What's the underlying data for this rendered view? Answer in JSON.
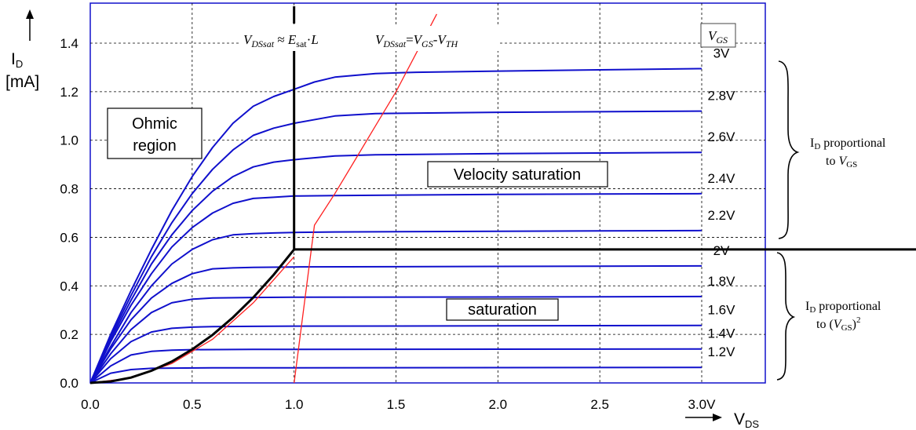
{
  "chart_data": {
    "type": "line",
    "title": "",
    "xlabel": "V",
    "xlabel_sub": "DS",
    "ylabel": "I",
    "ylabel_sub": "D",
    "ylabel_unit": "[mA]",
    "xlim": [
      0,
      3.3
    ],
    "ylim": [
      0,
      1.55
    ],
    "x_ticks": [
      {
        "value": 0.0,
        "label": "0.0"
      },
      {
        "value": 0.5,
        "label": "0.5"
      },
      {
        "value": 1.0,
        "label": "1.0"
      },
      {
        "value": 1.5,
        "label": "1.5"
      },
      {
        "value": 2.0,
        "label": "2.0"
      },
      {
        "value": 2.5,
        "label": "2.5"
      },
      {
        "value": 3.0,
        "label": "3.0V"
      }
    ],
    "y_ticks": [
      {
        "value": 0.0,
        "label": "0.0"
      },
      {
        "value": 0.2,
        "label": "0.2"
      },
      {
        "value": 0.4,
        "label": "0.4"
      },
      {
        "value": 0.6,
        "label": "0.6"
      },
      {
        "value": 0.8,
        "label": "0.8"
      },
      {
        "value": 1.0,
        "label": "1.0"
      },
      {
        "value": 1.2,
        "label": "1.2"
      },
      {
        "value": 1.4,
        "label": "1.4"
      }
    ],
    "grid": true,
    "legend_title": "V",
    "legend_title_sub": "GS",
    "series_color": "#1010cc",
    "series": [
      {
        "name": "3V",
        "x": [
          0,
          0.1,
          0.2,
          0.3,
          0.4,
          0.5,
          0.6,
          0.7,
          0.8,
          0.9,
          1.0,
          1.1,
          1.2,
          1.4,
          1.6,
          2.0,
          2.5,
          3.0
        ],
        "values": [
          0,
          0.2,
          0.38,
          0.55,
          0.71,
          0.85,
          0.97,
          1.07,
          1.14,
          1.18,
          1.21,
          1.24,
          1.26,
          1.275,
          1.28,
          1.285,
          1.29,
          1.295
        ]
      },
      {
        "name": "2.8V",
        "x": [
          0,
          0.1,
          0.2,
          0.3,
          0.4,
          0.5,
          0.6,
          0.7,
          0.8,
          0.9,
          1.0,
          1.2,
          1.4,
          2.0,
          3.0
        ],
        "values": [
          0,
          0.19,
          0.36,
          0.52,
          0.66,
          0.78,
          0.88,
          0.96,
          1.02,
          1.05,
          1.07,
          1.1,
          1.11,
          1.115,
          1.12
        ]
      },
      {
        "name": "2.6V",
        "x": [
          0,
          0.1,
          0.2,
          0.3,
          0.4,
          0.5,
          0.6,
          0.7,
          0.8,
          0.9,
          1.0,
          1.2,
          1.4,
          2.0,
          3.0
        ],
        "values": [
          0,
          0.18,
          0.34,
          0.49,
          0.61,
          0.71,
          0.79,
          0.85,
          0.89,
          0.91,
          0.92,
          0.935,
          0.94,
          0.945,
          0.95
        ]
      },
      {
        "name": "2.4V",
        "x": [
          0,
          0.1,
          0.2,
          0.3,
          0.4,
          0.5,
          0.6,
          0.7,
          0.8,
          0.9,
          1.0,
          1.2,
          2.0,
          3.0
        ],
        "values": [
          0,
          0.17,
          0.32,
          0.45,
          0.56,
          0.64,
          0.7,
          0.74,
          0.76,
          0.765,
          0.77,
          0.772,
          0.777,
          0.78
        ]
      },
      {
        "name": "2.2V",
        "x": [
          0,
          0.1,
          0.2,
          0.3,
          0.4,
          0.5,
          0.6,
          0.7,
          0.8,
          0.9,
          1.0,
          1.2,
          2.0,
          3.0
        ],
        "values": [
          0,
          0.15,
          0.29,
          0.4,
          0.49,
          0.55,
          0.59,
          0.61,
          0.615,
          0.618,
          0.62,
          0.622,
          0.625,
          0.628
        ]
      },
      {
        "name": "2V",
        "x": [
          0,
          0.1,
          0.2,
          0.3,
          0.4,
          0.5,
          0.6,
          0.7,
          0.8,
          1.0,
          1.5,
          2.0,
          3.0
        ],
        "values": [
          0,
          0.14,
          0.26,
          0.35,
          0.41,
          0.45,
          0.47,
          0.474,
          0.476,
          0.478,
          0.479,
          0.48,
          0.482
        ]
      },
      {
        "name": "1.8V",
        "x": [
          0,
          0.1,
          0.2,
          0.3,
          0.4,
          0.5,
          0.6,
          0.8,
          1.0,
          2.0,
          3.0
        ],
        "values": [
          0,
          0.12,
          0.22,
          0.29,
          0.33,
          0.345,
          0.35,
          0.352,
          0.353,
          0.354,
          0.356
        ]
      },
      {
        "name": "1.6V",
        "x": [
          0,
          0.1,
          0.2,
          0.3,
          0.4,
          0.5,
          0.6,
          0.8,
          1.0,
          2.0,
          3.0
        ],
        "values": [
          0,
          0.1,
          0.17,
          0.21,
          0.225,
          0.23,
          0.232,
          0.233,
          0.234,
          0.235,
          0.237
        ]
      },
      {
        "name": "1.4V",
        "x": [
          0,
          0.1,
          0.2,
          0.3,
          0.4,
          0.5,
          0.8,
          1.0,
          2.0,
          3.0
        ],
        "values": [
          0,
          0.07,
          0.115,
          0.13,
          0.135,
          0.137,
          0.138,
          0.138,
          0.139,
          0.14
        ]
      },
      {
        "name": "1.2V",
        "x": [
          0,
          0.1,
          0.2,
          0.3,
          0.4,
          0.6,
          1.0,
          2.0,
          3.0
        ],
        "values": [
          0,
          0.04,
          0.055,
          0.06,
          0.061,
          0.062,
          0.062,
          0.063,
          0.064
        ]
      }
    ],
    "boundary_black": {
      "curve_x": [
        0,
        0.1,
        0.2,
        0.3,
        0.4,
        0.5,
        0.6,
        0.7,
        0.8,
        0.9,
        1.0
      ],
      "curve_y": [
        0,
        0.006,
        0.022,
        0.05,
        0.088,
        0.138,
        0.198,
        0.27,
        0.352,
        0.446,
        0.55
      ],
      "vertical_x": 1.0,
      "horizontal_y": 0.55
    },
    "boundary_red": {
      "x": [
        0,
        0.2,
        0.4,
        0.6,
        0.8,
        1.0,
        1.0,
        1.1,
        1.2,
        1.3,
        1.4,
        1.5,
        1.6,
        1.7
      ],
      "y": [
        0,
        0.02,
        0.08,
        0.18,
        0.33,
        0.52,
        0.0,
        0.65,
        0.78,
        0.92,
        1.06,
        1.2,
        1.36,
        1.52
      ]
    },
    "annotations": {
      "ohmic_line1": "Ohmic",
      "ohmic_line2": "region",
      "velocity_saturation": "Velocity saturation",
      "saturation": "saturation",
      "eq1": "VDSsat ≈ Esat·L",
      "eq2": "VDSsat=VGS-VTH",
      "upper_brace_line1": "ID proportional",
      "upper_brace_line2": "to VGS",
      "lower_brace_line1": "ID proportional",
      "lower_brace_line2": "to (VGS)2"
    }
  }
}
